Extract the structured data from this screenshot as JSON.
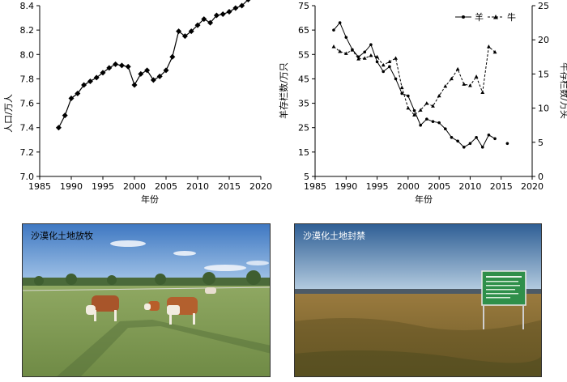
{
  "chart_data": [
    {
      "type": "line",
      "ylabel": "人口/万人",
      "xlabel": "年份",
      "xlim": [
        1985,
        2020
      ],
      "ylim": [
        7.0,
        8.4
      ],
      "xticks": [
        "1985",
        "1990",
        "1995",
        "2000",
        "2005",
        "2010",
        "2015",
        "2020"
      ],
      "yticks": [
        "7.0",
        "7.2",
        "7.4",
        "7.6",
        "7.8",
        "8.0",
        "8.2",
        "8.4"
      ],
      "grid": false,
      "series": [
        {
          "x": [
            1988,
            1989,
            1990,
            1991,
            1992,
            1993,
            1994,
            1995,
            1996,
            1997,
            1998,
            1999,
            2000,
            2001,
            2002,
            2003,
            2004,
            2005,
            2006,
            2007,
            2008,
            2009,
            2010,
            2011,
            2012,
            2013,
            2014,
            2015,
            2016,
            2017,
            2018
          ],
          "y": [
            7.4,
            7.5,
            7.64,
            7.68,
            7.75,
            7.78,
            7.81,
            7.85,
            7.89,
            7.92,
            7.91,
            7.9,
            7.75,
            7.84,
            7.87,
            7.79,
            7.82,
            7.87,
            7.98,
            8.19,
            8.15,
            8.19,
            8.24,
            8.29,
            8.26,
            8.32,
            8.33,
            8.35,
            8.38,
            8.4,
            8.45
          ]
        }
      ]
    },
    {
      "type": "line",
      "ylabel": "羊存栏数/万只",
      "y2label": "牛存栏数/万头",
      "xlabel": "年份",
      "xlim": [
        1985,
        2020
      ],
      "ylim": [
        5,
        75
      ],
      "y2lim": [
        0,
        25
      ],
      "xticks": [
        "1985",
        "1990",
        "1995",
        "2000",
        "2005",
        "2010",
        "2015",
        "2020"
      ],
      "yticks": [
        "5",
        "15",
        "25",
        "35",
        "45",
        "55",
        "65",
        "75"
      ],
      "y2ticks": [
        "0",
        "5",
        "10",
        "15",
        "20",
        "25"
      ],
      "legend": "top-right",
      "grid": false,
      "series": [
        {
          "name": "羊",
          "axis": "left",
          "style": "solid",
          "marker": "circle",
          "x": [
            1988,
            1989,
            1990,
            1991,
            1992,
            1993,
            1994,
            1995,
            1996,
            1997,
            1998,
            1999,
            2000,
            2001,
            2002,
            2003,
            2004,
            2005,
            2006,
            2007,
            2008,
            2009,
            2010,
            2011,
            2012,
            2013,
            2014,
            2016
          ],
          "y": [
            65,
            68,
            62,
            57,
            54,
            56,
            59,
            52,
            48,
            50,
            45,
            39,
            38,
            32,
            26,
            28.5,
            27.5,
            27,
            24.5,
            21,
            19.5,
            17,
            18.5,
            21,
            17,
            22,
            20.5,
            18.5
          ]
        },
        {
          "name": "牛",
          "axis": "right",
          "style": "dashed",
          "marker": "triangle",
          "x": [
            1988,
            1989,
            1990,
            1991,
            1992,
            1993,
            1994,
            1995,
            1996,
            1997,
            1998,
            1999,
            2000,
            2001,
            2002,
            2003,
            2004,
            2005,
            2006,
            2007,
            2008,
            2009,
            2010,
            2011,
            2012,
            2013,
            2014
          ],
          "y": [
            19.0,
            18.3,
            18.0,
            18.5,
            17.2,
            17.3,
            17.7,
            17.5,
            16.3,
            16.8,
            17.3,
            13.0,
            10.0,
            9.0,
            9.7,
            10.7,
            10.3,
            11.8,
            13.2,
            14.3,
            15.7,
            13.5,
            13.3,
            14.6,
            12.3,
            19.0,
            18.2
          ]
        }
      ]
    }
  ],
  "photos": {
    "grazing_label": "沙漠化土地放牧",
    "enclosure_label": "沙漠化土地封禁"
  }
}
